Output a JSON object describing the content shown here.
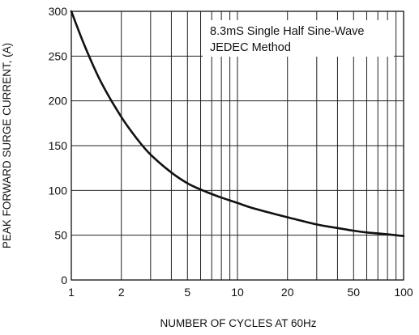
{
  "chart_data": {
    "type": "line",
    "title": "",
    "xlabel": "NUMBER OF CYCLES AT 60Hz",
    "ylabel": "PEAK  FORWARD SURGE CURRENT, (A)",
    "x_scale": "log",
    "xlim": [
      1,
      100
    ],
    "ylim": [
      0,
      300
    ],
    "x_ticks": [
      1,
      2,
      5,
      10,
      20,
      50,
      100
    ],
    "y_ticks": [
      0,
      50,
      100,
      150,
      200,
      250,
      300
    ],
    "grid": true,
    "annotation": [
      "8.3mS Single Half Sine-Wave",
      "JEDEC Method"
    ],
    "series": [
      {
        "x": [
          1,
          1.2,
          1.5,
          2,
          2.5,
          3,
          4,
          5,
          6,
          7,
          8,
          10,
          12,
          15,
          20,
          30,
          40,
          50,
          60,
          70,
          80,
          90,
          100
        ],
        "y": [
          300,
          262,
          222,
          182,
          157,
          140,
          120,
          108,
          101,
          96,
          92,
          86,
          81,
          76,
          70,
          62,
          58,
          55,
          53,
          52,
          51,
          50,
          49
        ],
        "color": "#111111"
      }
    ]
  }
}
